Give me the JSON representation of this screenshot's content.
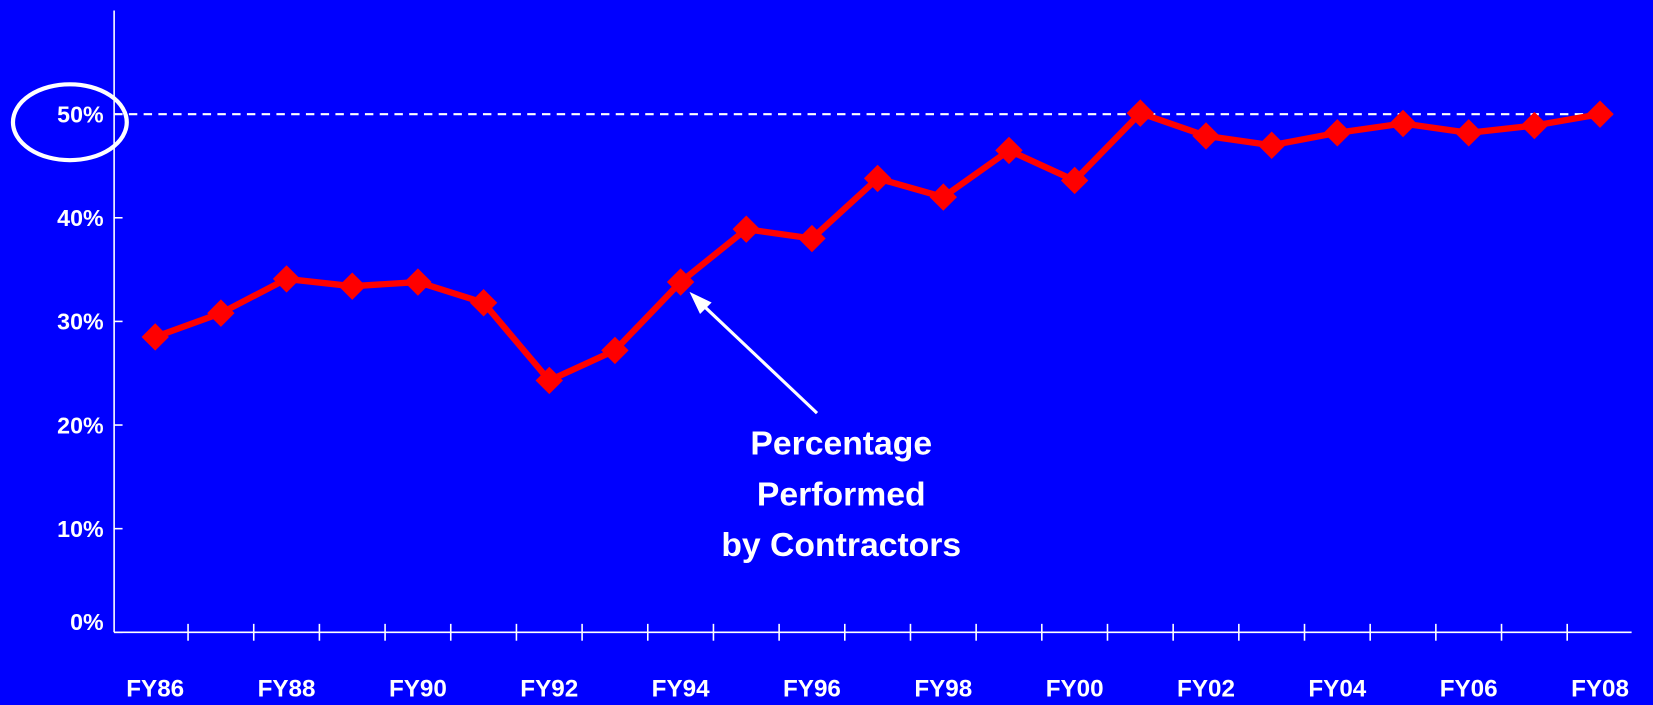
{
  "chart_data": {
    "type": "line",
    "categories": [
      "FY86",
      null,
      "FY88",
      null,
      "FY90",
      null,
      "FY92",
      null,
      "FY94",
      null,
      "FY96",
      null,
      "FY98",
      null,
      "FY00",
      null,
      "FY02",
      null,
      "FY04",
      null,
      "FY06",
      null,
      "FY08"
    ],
    "series": [
      {
        "name": "Percentage Performed by Contractors",
        "color": "#ff0000",
        "values": [
          28.5,
          30.8,
          34.1,
          33.4,
          33.8,
          31.8,
          24.3,
          27.2,
          33.8,
          38.9,
          38.0,
          43.8,
          42.0,
          46.5,
          43.6,
          50.1,
          47.9,
          47.0,
          48.2,
          49.1,
          48.2,
          48.9,
          50.0
        ]
      }
    ],
    "ylim": [
      0,
      60
    ],
    "yticks": [
      {
        "value": 0,
        "label": "0%"
      },
      {
        "value": 10,
        "label": "10%"
      },
      {
        "value": 20,
        "label": "20%"
      },
      {
        "value": 30,
        "label": "30%"
      },
      {
        "value": 40,
        "label": "40%"
      },
      {
        "value": 50,
        "label": "50%"
      }
    ],
    "annotation": [
      "Percentage",
      "Performed",
      "by Contractors"
    ]
  }
}
